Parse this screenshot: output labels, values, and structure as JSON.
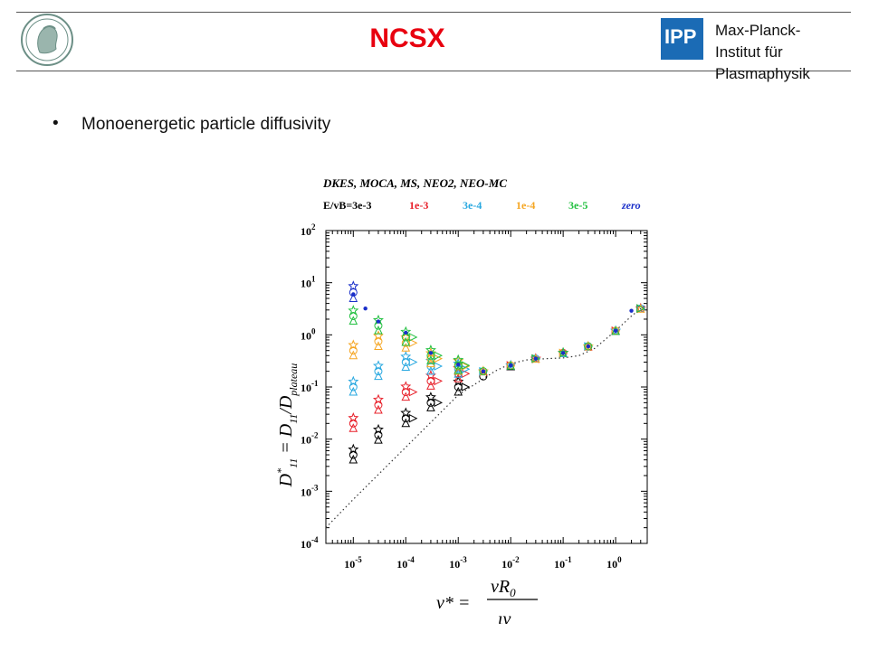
{
  "header": {
    "title": "NCSX",
    "institute_lines": [
      "Max-Planck-",
      "Institut für",
      "Plasmaphysik"
    ],
    "ipp_logo_text": "IPP"
  },
  "slide": {
    "bullet_symbol": "•",
    "bullet_text": "Monoenergetic particle diffusivity"
  },
  "chart_data": {
    "type": "scatter",
    "title": "DKES, MOCA, MS, NEO2, NEO-MC",
    "legend": [
      {
        "label": "E/vB=3e-3",
        "color": "#000000"
      },
      {
        "label": "1e-3",
        "color": "#e8202a"
      },
      {
        "label": "3e-4",
        "color": "#28a8e0"
      },
      {
        "label": "1e-4",
        "color": "#f5a623"
      },
      {
        "label": "3e-5",
        "color": "#22c040"
      },
      {
        "label": "zero",
        "color": "#1a2fc9"
      }
    ],
    "x_scale": "log",
    "y_scale": "log",
    "xlim": [
      3e-06,
      4
    ],
    "ylim": [
      0.0001,
      100
    ],
    "x_ticks": [
      {
        "value": 1e-05,
        "base": "10",
        "exp": "-5"
      },
      {
        "value": 0.0001,
        "base": "10",
        "exp": "-4"
      },
      {
        "value": 0.001,
        "base": "10",
        "exp": "-3"
      },
      {
        "value": 0.01,
        "base": "10",
        "exp": "-2"
      },
      {
        "value": 0.1,
        "base": "10",
        "exp": "-1"
      },
      {
        "value": 1,
        "base": "10",
        "exp": "0"
      }
    ],
    "y_ticks": [
      {
        "value": 100,
        "base": "10",
        "exp": "2"
      },
      {
        "value": 10,
        "base": "10",
        "exp": "1"
      },
      {
        "value": 1,
        "base": "10",
        "exp": "0"
      },
      {
        "value": 0.1,
        "base": "10",
        "exp": "-1"
      },
      {
        "value": 0.01,
        "base": "10",
        "exp": "-2"
      },
      {
        "value": 0.001,
        "base": "10",
        "exp": "-3"
      },
      {
        "value": 0.0001,
        "base": "10",
        "exp": "-4"
      }
    ],
    "ylabel": "D*11 = D11/Dplateau",
    "xlabel": "ν* = νR0/ιv",
    "series": [
      {
        "name": "E/vB=3e-3",
        "color": "#000000",
        "x": [
          1e-05,
          3e-05,
          0.0001,
          0.0003,
          0.001,
          0.003,
          0.01,
          0.03,
          0.1,
          0.3,
          1,
          3
        ],
        "y": [
          0.005,
          0.012,
          0.025,
          0.05,
          0.1,
          0.16,
          0.25,
          0.35,
          0.45,
          0.6,
          1.2,
          3.2
        ]
      },
      {
        "name": "1e-3",
        "color": "#e8202a",
        "x": [
          1e-05,
          3e-05,
          0.0001,
          0.0003,
          0.001,
          0.003,
          0.01,
          0.03,
          0.1,
          0.3,
          1,
          3
        ],
        "y": [
          0.02,
          0.045,
          0.08,
          0.13,
          0.18,
          0.2,
          0.26,
          0.35,
          0.45,
          0.6,
          1.2,
          3.2
        ]
      },
      {
        "name": "3e-4",
        "color": "#28a8e0",
        "x": [
          1e-05,
          3e-05,
          0.0001,
          0.0003,
          0.001,
          0.003,
          0.01,
          0.03,
          0.1,
          0.3,
          1,
          3
        ],
        "y": [
          0.1,
          0.2,
          0.3,
          0.25,
          0.22,
          0.2,
          0.26,
          0.35,
          0.45,
          0.6,
          1.2,
          3.2
        ]
      },
      {
        "name": "1e-4",
        "color": "#f5a623",
        "x": [
          1e-05,
          3e-05,
          0.0001,
          0.0003,
          0.001,
          0.003,
          0.01,
          0.03,
          0.1,
          0.3,
          1,
          3
        ],
        "y": [
          0.5,
          0.75,
          0.7,
          0.35,
          0.25,
          0.2,
          0.26,
          0.35,
          0.45,
          0.6,
          1.2,
          3.2
        ]
      },
      {
        "name": "3e-5",
        "color": "#22c040",
        "x": [
          1e-05,
          3e-05,
          0.0001,
          0.0003,
          0.001,
          0.003,
          0.01,
          0.03,
          0.1,
          0.3,
          1,
          3
        ],
        "y": [
          2.3,
          1.5,
          0.9,
          0.4,
          0.26,
          0.2,
          0.26,
          0.35,
          0.45,
          0.6,
          1.2,
          3.2
        ]
      },
      {
        "name": "zero",
        "color": "#1a2fc9",
        "x": [
          1e-05,
          1.7e-05,
          3e-05,
          0.0001,
          0.0003,
          0.001,
          0.003,
          0.01,
          0.03,
          0.1,
          0.3,
          1,
          2
        ],
        "y": [
          6,
          3.2,
          1.8,
          1.1,
          0.45,
          0.27,
          0.2,
          0.26,
          0.35,
          0.45,
          0.6,
          1.2,
          2.9
        ]
      }
    ],
    "reference_curve": {
      "style": "dotted",
      "x": [
        3e-06,
        1e-05,
        0.0001,
        0.001,
        0.005,
        0.01,
        0.02,
        0.05,
        0.1,
        0.2,
        0.4,
        1,
        2,
        4
      ],
      "y": [
        0.0002,
        0.0007,
        0.007,
        0.07,
        0.2,
        0.28,
        0.33,
        0.35,
        0.36,
        0.4,
        0.55,
        1.2,
        2.3,
        4.0
      ]
    }
  }
}
